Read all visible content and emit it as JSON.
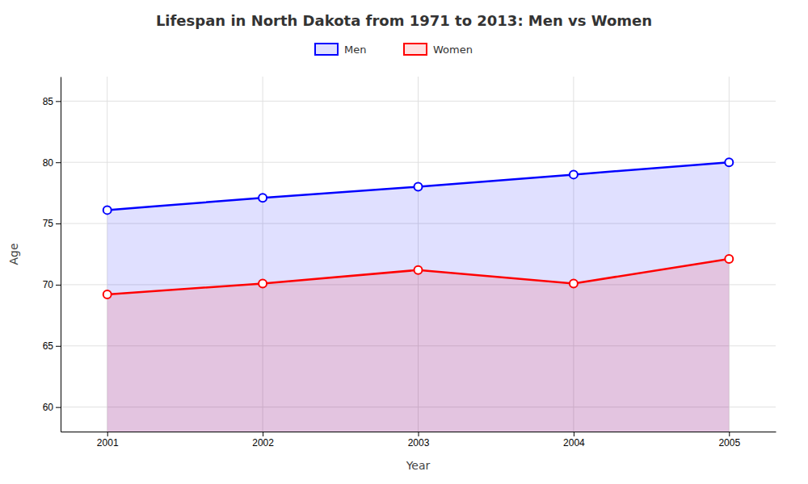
{
  "chart_data": {
    "type": "area",
    "title": "Lifespan in North Dakota from 1971 to 2013: Men vs Women",
    "xlabel": "Year",
    "ylabel": "Age",
    "x": [
      2001,
      2002,
      2003,
      2004,
      2005
    ],
    "series": [
      {
        "name": "Men",
        "color": "#0000ff",
        "marker": "circle",
        "values": [
          76.1,
          77.1,
          78.0,
          79.0,
          80.0
        ]
      },
      {
        "name": "Women",
        "color": "#ff0000",
        "marker": "circle",
        "values": [
          69.2,
          70.1,
          71.2,
          70.1,
          72.1
        ]
      }
    ],
    "xlim": [
      2000.7,
      2005.3
    ],
    "xticks": [
      2001,
      2002,
      2003,
      2004,
      2005
    ],
    "ylim": [
      58,
      87
    ],
    "yticks": [
      60,
      65,
      70,
      75,
      80,
      85
    ],
    "grid": true,
    "legend": "top"
  }
}
